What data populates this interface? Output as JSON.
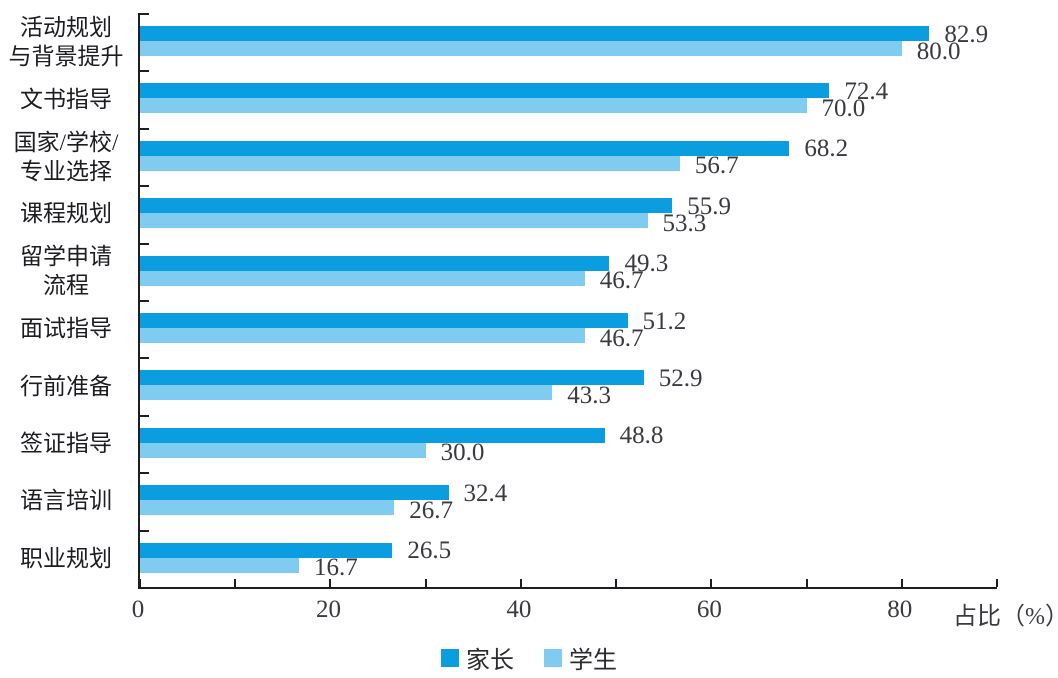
{
  "chart_data": {
    "type": "bar",
    "orientation": "horizontal",
    "title": "",
    "xlabel": "占比（%）",
    "ylabel": "",
    "xlim": [
      0,
      90
    ],
    "x_tick_step": 10,
    "x_ticks_labeled": [
      0,
      20,
      40,
      60,
      80
    ],
    "value_decimals": 1,
    "grid": false,
    "legend_position": "bottom-center",
    "categories": [
      "活动规划\n与背景提升",
      "文书指导",
      "国家/学校/\n专业选择",
      "课程规划",
      "留学申请\n流程",
      "面试指导",
      "行前准备",
      "签证指导",
      "语言培训",
      "职业规划"
    ],
    "series": [
      {
        "name": "家长",
        "color": "#0a9ee0",
        "values": [
          82.9,
          72.4,
          68.2,
          55.9,
          49.3,
          51.2,
          52.9,
          48.8,
          32.4,
          26.5
        ]
      },
      {
        "name": "学生",
        "color": "#80ccf0",
        "values": [
          80.0,
          70.0,
          56.7,
          53.3,
          46.7,
          46.7,
          43.3,
          30.0,
          26.7,
          16.7
        ]
      }
    ],
    "axis_color": "#1d1d24",
    "label_color": "#3a3a42"
  },
  "legend": {
    "items": [
      {
        "label": "家长"
      },
      {
        "label": "学生"
      }
    ]
  }
}
